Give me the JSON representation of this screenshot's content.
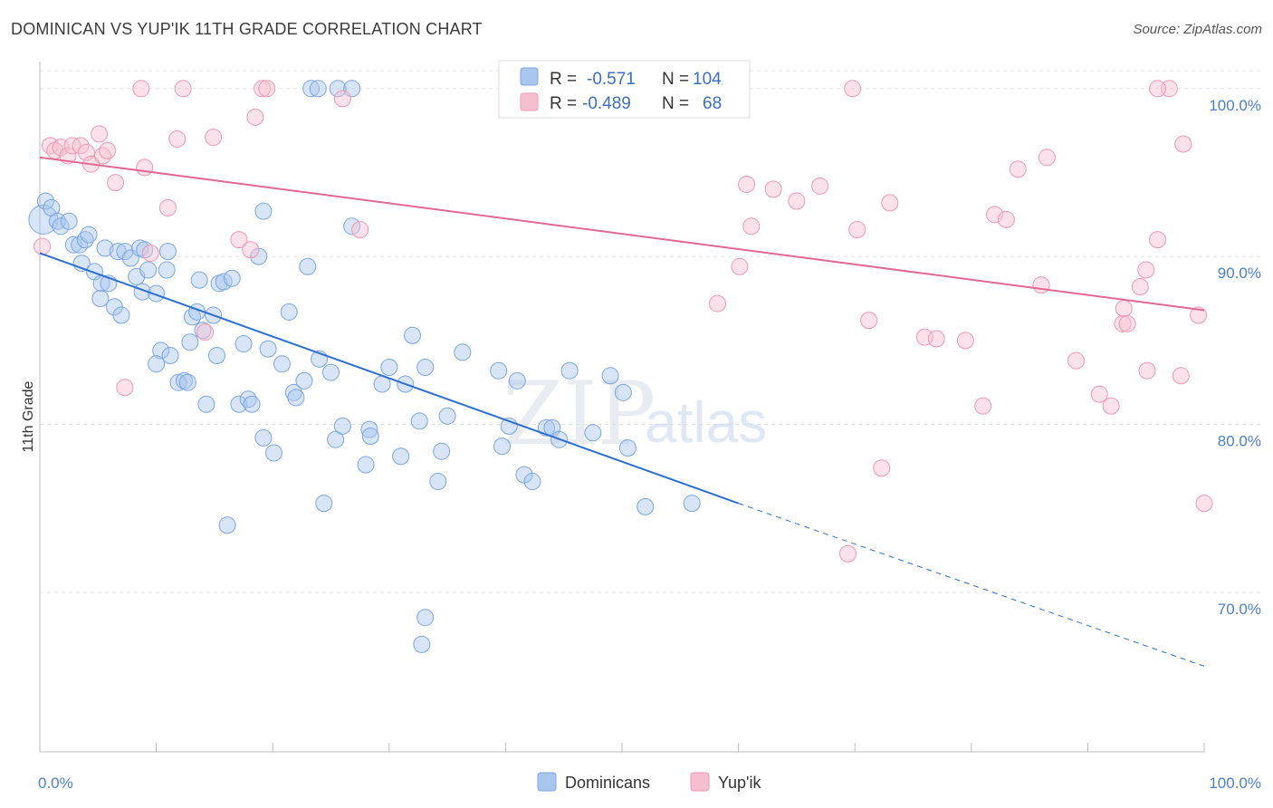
{
  "header": {
    "title": "DOMINICAN VS YUP'IK 11TH GRADE CORRELATION CHART",
    "source": "Source: ZipAtlas.com"
  },
  "watermark": {
    "zip": "ZIP",
    "atlas": "atlas"
  },
  "legend": {
    "r_label": "R =",
    "n_label": "N =",
    "dominicans": {
      "r": "-0.571",
      "n": "104"
    },
    "yupik": {
      "r": "-0.489",
      "n": "68"
    }
  },
  "bottom_legend": [
    "Dominicans",
    "Yup'ik"
  ],
  "chart_data": {
    "type": "scatter",
    "title": "DOMINICAN VS YUP'IK 11TH GRADE CORRELATION CHART",
    "xlabel": "",
    "ylabel": "11th Grade",
    "xlim": [
      0,
      100
    ],
    "ylim": [
      60.5,
      101.5
    ],
    "x_tick_labels": [
      "0.0%",
      "100.0%"
    ],
    "y_ticks": [
      70,
      80,
      90,
      100
    ],
    "y_tick_labels": [
      "70.0%",
      "80.0%",
      "90.0%",
      "100.0%"
    ],
    "grid": true,
    "legend_position": "top-center",
    "colors": {
      "dominicans_fill": "#a9c6ee",
      "dominicans_stroke": "#7ba5e0",
      "dominicans_line": "#2d6fd0",
      "yupik_fill": "#f6bfd0",
      "yupik_stroke": "#ee97b3",
      "yupik_line": "#e0698f"
    },
    "series": [
      {
        "name": "Dominicans",
        "trend": {
          "x0": 0,
          "y0": 90.2,
          "x1": 60,
          "y1": 75.3,
          "dashed_to_x": 100,
          "dashed_to_y": 65.6
        },
        "points": [
          [
            0.3,
            92.2
          ],
          [
            0.5,
            93.3
          ],
          [
            1.0,
            92.9
          ],
          [
            1.5,
            92.1
          ],
          [
            1.8,
            91.8
          ],
          [
            2.5,
            92.1
          ],
          [
            2.9,
            90.7
          ],
          [
            3.4,
            90.7
          ],
          [
            3.9,
            91.0
          ],
          [
            4.2,
            91.3
          ],
          [
            3.6,
            89.6
          ],
          [
            4.7,
            89.1
          ],
          [
            5.3,
            88.4
          ],
          [
            5.9,
            88.4
          ],
          [
            5.2,
            87.5
          ],
          [
            6.4,
            87.0
          ],
          [
            7.0,
            86.5
          ],
          [
            5.6,
            90.5
          ],
          [
            6.7,
            90.3
          ],
          [
            7.3,
            90.3
          ],
          [
            7.8,
            89.9
          ],
          [
            8.3,
            88.8
          ],
          [
            8.8,
            87.9
          ],
          [
            8.6,
            90.5
          ],
          [
            9.0,
            90.4
          ],
          [
            9.3,
            89.2
          ],
          [
            10.0,
            87.8
          ],
          [
            10.4,
            84.4
          ],
          [
            10.0,
            83.6
          ],
          [
            10.9,
            89.2
          ],
          [
            11.0,
            90.3
          ],
          [
            11.2,
            84.1
          ],
          [
            11.9,
            82.5
          ],
          [
            12.4,
            82.6
          ],
          [
            12.7,
            82.5
          ],
          [
            12.9,
            84.9
          ],
          [
            13.1,
            86.4
          ],
          [
            13.5,
            86.7
          ],
          [
            13.7,
            88.6
          ],
          [
            14.0,
            85.6
          ],
          [
            14.3,
            81.2
          ],
          [
            14.9,
            86.5
          ],
          [
            15.2,
            84.1
          ],
          [
            15.4,
            88.4
          ],
          [
            15.8,
            88.5
          ],
          [
            16.5,
            88.7
          ],
          [
            17.1,
            81.2
          ],
          [
            17.5,
            84.8
          ],
          [
            17.9,
            81.5
          ],
          [
            18.2,
            81.2
          ],
          [
            18.8,
            90.0
          ],
          [
            19.2,
            92.7
          ],
          [
            19.2,
            79.2
          ],
          [
            19.6,
            84.5
          ],
          [
            20.1,
            78.3
          ],
          [
            20.8,
            83.6
          ],
          [
            21.4,
            86.7
          ],
          [
            21.8,
            81.9
          ],
          [
            22.0,
            81.6
          ],
          [
            22.7,
            82.6
          ],
          [
            23.0,
            89.4
          ],
          [
            24.0,
            83.9
          ],
          [
            24.4,
            75.3
          ],
          [
            25.0,
            83.1
          ],
          [
            25.4,
            79.1
          ],
          [
            26.0,
            79.9
          ],
          [
            26.8,
            91.8
          ],
          [
            28.0,
            77.6
          ],
          [
            28.3,
            79.7
          ],
          [
            29.4,
            82.4
          ],
          [
            30.0,
            83.4
          ],
          [
            31.0,
            78.1
          ],
          [
            31.4,
            82.4
          ],
          [
            32.0,
            85.3
          ],
          [
            32.6,
            80.2
          ],
          [
            33.1,
            83.4
          ],
          [
            34.2,
            76.6
          ],
          [
            35.0,
            80.5
          ],
          [
            34.5,
            78.4
          ],
          [
            36.3,
            84.3
          ],
          [
            39.4,
            83.2
          ],
          [
            39.7,
            78.7
          ],
          [
            40.3,
            79.9
          ],
          [
            41.0,
            82.6
          ],
          [
            41.6,
            77.0
          ],
          [
            42.3,
            76.6
          ],
          [
            43.5,
            79.8
          ],
          [
            44.0,
            79.8
          ],
          [
            44.6,
            79.1
          ],
          [
            45.5,
            83.2
          ],
          [
            47.5,
            79.5
          ],
          [
            49.0,
            82.9
          ],
          [
            50.1,
            81.9
          ],
          [
            50.5,
            78.6
          ],
          [
            52.0,
            75.1
          ],
          [
            56.0,
            75.3
          ],
          [
            23.3,
            100.0
          ],
          [
            23.9,
            100.0
          ],
          [
            25.6,
            100.0
          ],
          [
            26.8,
            100.0
          ],
          [
            16.1,
            74.0
          ],
          [
            32.8,
            66.9
          ],
          [
            33.1,
            68.5
          ],
          [
            28.4,
            79.3
          ]
        ]
      },
      {
        "name": "Yup'ik",
        "trend": {
          "x0": 0,
          "y0": 95.9,
          "x1": 100,
          "y1": 86.8
        },
        "points": [
          [
            0.2,
            90.6
          ],
          [
            0.9,
            96.6
          ],
          [
            1.3,
            96.3
          ],
          [
            1.8,
            96.5
          ],
          [
            2.4,
            96.0
          ],
          [
            2.8,
            96.6
          ],
          [
            3.5,
            96.6
          ],
          [
            4.0,
            96.2
          ],
          [
            4.4,
            95.5
          ],
          [
            5.1,
            97.3
          ],
          [
            5.4,
            96.0
          ],
          [
            5.8,
            96.3
          ],
          [
            6.5,
            94.4
          ],
          [
            7.3,
            82.2
          ],
          [
            8.7,
            100.0
          ],
          [
            9.0,
            95.3
          ],
          [
            9.5,
            90.2
          ],
          [
            11.0,
            92.9
          ],
          [
            11.8,
            97.0
          ],
          [
            12.3,
            100.0
          ],
          [
            14.2,
            85.5
          ],
          [
            14.9,
            97.1
          ],
          [
            17.1,
            91.0
          ],
          [
            18.1,
            90.4
          ],
          [
            18.5,
            98.3
          ],
          [
            19.1,
            100.0
          ],
          [
            19.5,
            100.0
          ],
          [
            26.0,
            99.4
          ],
          [
            27.5,
            91.6
          ],
          [
            58.2,
            87.2
          ],
          [
            60.0,
            100.0
          ],
          [
            60.1,
            89.4
          ],
          [
            60.7,
            94.3
          ],
          [
            61.1,
            91.8
          ],
          [
            63.0,
            94.0
          ],
          [
            65.0,
            93.3
          ],
          [
            67.0,
            94.2
          ],
          [
            69.4,
            72.3
          ],
          [
            69.8,
            100.0
          ],
          [
            70.2,
            91.6
          ],
          [
            71.2,
            86.2
          ],
          [
            72.3,
            77.4
          ],
          [
            73.0,
            93.2
          ],
          [
            76.0,
            85.2
          ],
          [
            77.0,
            85.1
          ],
          [
            79.5,
            85.0
          ],
          [
            81.0,
            81.1
          ],
          [
            82.0,
            92.5
          ],
          [
            83.0,
            92.2
          ],
          [
            84.0,
            95.2
          ],
          [
            86.0,
            88.3
          ],
          [
            86.5,
            95.9
          ],
          [
            89.0,
            83.8
          ],
          [
            91.0,
            81.8
          ],
          [
            92.0,
            81.1
          ],
          [
            93.0,
            86.0
          ],
          [
            93.1,
            86.9
          ],
          [
            93.4,
            86.0
          ],
          [
            94.5,
            88.2
          ],
          [
            95.0,
            89.2
          ],
          [
            95.1,
            83.2
          ],
          [
            96.0,
            91.0
          ],
          [
            97.0,
            100.0
          ],
          [
            98.0,
            82.9
          ],
          [
            98.2,
            96.7
          ],
          [
            99.5,
            86.5
          ],
          [
            100.0,
            75.3
          ],
          [
            96.0,
            100.0
          ]
        ]
      }
    ]
  }
}
